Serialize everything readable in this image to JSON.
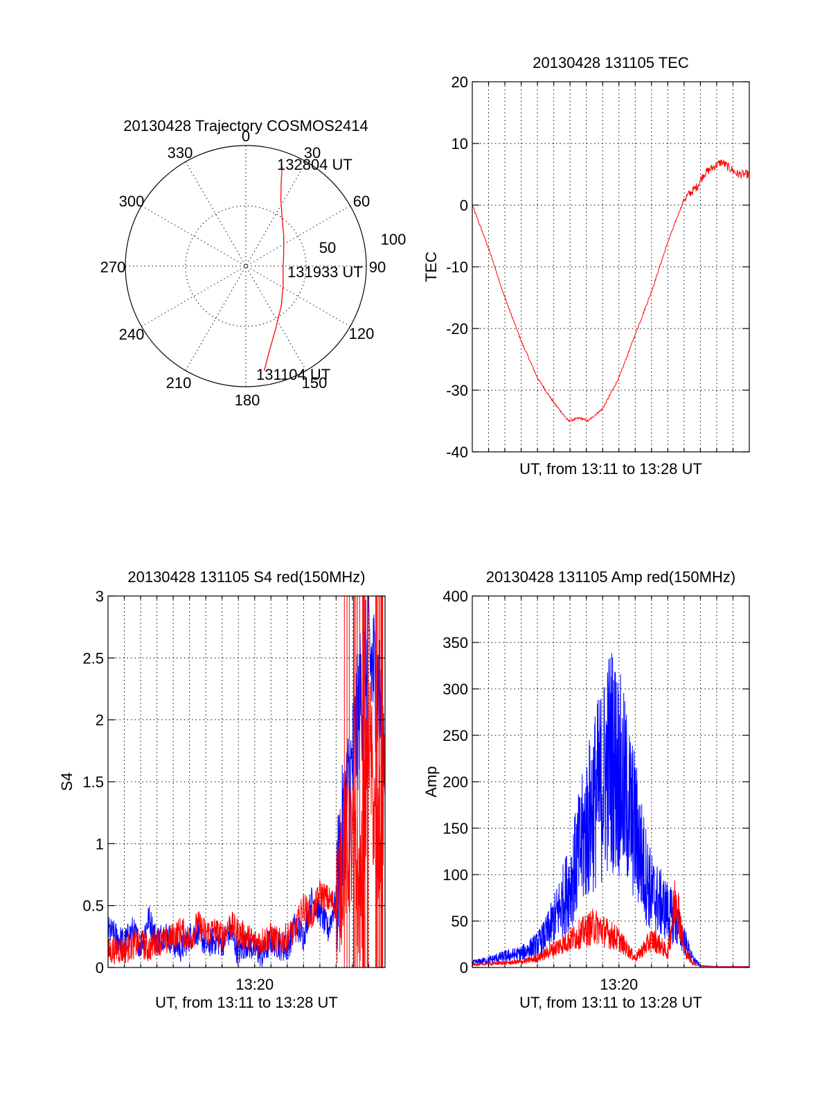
{
  "chart_data": [
    {
      "type": "polar-line",
      "title": "20130428 Trajectory COSMOS2414",
      "angle_labels": [
        "0",
        "30",
        "60",
        "90",
        "120",
        "150",
        "180",
        "210",
        "240",
        "270",
        "300",
        "330"
      ],
      "radial_labels": [
        "50",
        "100"
      ],
      "annotations": [
        "132804 UT",
        "131933 UT",
        "131104 UT"
      ],
      "series": [
        {
          "color": "#ff0000",
          "points": [
            {
              "azimuth": 20,
              "zenith": 88,
              "time": "132804"
            },
            {
              "azimuth": 23,
              "zenith": 75
            },
            {
              "azimuth": 28,
              "zenith": 62
            },
            {
              "azimuth": 37,
              "zenith": 50
            },
            {
              "azimuth": 52,
              "zenith": 40
            },
            {
              "azimuth": 72,
              "zenith": 33
            },
            {
              "azimuth": 94,
              "zenith": 31,
              "time": "131933"
            },
            {
              "azimuth": 118,
              "zenith": 35
            },
            {
              "azimuth": 138,
              "zenith": 44
            },
            {
              "azimuth": 154,
              "zenith": 57
            },
            {
              "azimuth": 164,
              "zenith": 72
            },
            {
              "azimuth": 170,
              "zenith": 88,
              "time": "131104"
            }
          ]
        }
      ]
    },
    {
      "type": "line",
      "title": "20130428 131105 TEC",
      "ylabel": "TEC",
      "xlabel": "UT, from 13:11 to 13:28 UT",
      "ylim": [
        -40,
        20
      ],
      "xlim": [
        0,
        17
      ],
      "yticks": [
        "20",
        "10",
        "0",
        "-10",
        "-20",
        "-30",
        "-40"
      ],
      "series": [
        {
          "color": "#ff0000",
          "x": [
            0,
            1,
            2,
            3,
            4,
            5,
            5.9,
            6.6,
            7.1,
            8,
            9,
            10,
            11,
            12,
            13,
            13.8,
            14.2,
            14.7,
            15.3,
            15.8,
            16.3,
            17
          ],
          "y": [
            0,
            -7,
            -15,
            -22,
            -28,
            -32,
            -35,
            -34.5,
            -35,
            -33,
            -28,
            -21,
            -14,
            -6,
            1,
            3,
            5,
            6,
            7,
            6,
            5,
            5
          ]
        }
      ]
    },
    {
      "type": "line",
      "title": "20130428 131105 S4 red(150MHz)",
      "ylabel": "S4",
      "xlabel": "UT, from 13:11 to 13:28 UT",
      "ylim": [
        0,
        3
      ],
      "xlim": [
        0,
        17
      ],
      "yticks": [
        "0",
        "0.5",
        "1",
        "1.5",
        "2",
        "2.5",
        "3"
      ],
      "xticks": [
        {
          "x": 9,
          "label": "13:20"
        }
      ],
      "series": [
        {
          "color": "#0000ff",
          "x": [
            0,
            0.5,
            1,
            1.5,
            2,
            2.5,
            3,
            3.5,
            4,
            4.5,
            5,
            5.5,
            6,
            6.5,
            7,
            7.5,
            8,
            8.5,
            9,
            9.5,
            10,
            10.5,
            11,
            11.5,
            12,
            12.5,
            13,
            13.5,
            14,
            14.5,
            15,
            15.5,
            16,
            16.5,
            17
          ],
          "y": [
            0.3,
            0.25,
            0.2,
            0.3,
            0.18,
            0.4,
            0.22,
            0.28,
            0.2,
            0.15,
            0.25,
            0.3,
            0.18,
            0.22,
            0.2,
            0.3,
            0.12,
            0.2,
            0.15,
            0.1,
            0.22,
            0.18,
            0.15,
            0.35,
            0.25,
            0.55,
            0.45,
            0.3,
            0.55,
            1.2,
            1.6,
            2.2,
            2.5,
            2.3,
            1.8
          ]
        },
        {
          "color": "#ff0000",
          "x": [
            0,
            0.5,
            1,
            1.5,
            2,
            2.5,
            3,
            3.5,
            4,
            4.5,
            5,
            5.5,
            6,
            6.5,
            7,
            7.5,
            8,
            8.5,
            9,
            9.5,
            10,
            10.5,
            11,
            11.5,
            12,
            12.5,
            13,
            13.5,
            14,
            14.5,
            15,
            15.5,
            16,
            16.5,
            17
          ],
          "y": [
            0.12,
            0.15,
            0.14,
            0.18,
            0.2,
            0.15,
            0.22,
            0.2,
            0.25,
            0.3,
            0.22,
            0.35,
            0.28,
            0.3,
            0.25,
            0.35,
            0.28,
            0.25,
            0.2,
            0.22,
            0.25,
            0.2,
            0.25,
            0.3,
            0.5,
            0.4,
            0.6,
            0.55,
            0.5,
            0.9,
            1.0,
            0.5,
            2.0,
            0.8,
            1.5
          ]
        }
      ]
    },
    {
      "type": "line",
      "title": "20130428 131105 Amp red(150MHz)",
      "ylabel": "Amp",
      "xlabel": "UT, from 13:11 to 13:28 UT",
      "ylim": [
        0,
        400
      ],
      "xlim": [
        0,
        17
      ],
      "yticks": [
        "0",
        "50",
        "100",
        "150",
        "200",
        "250",
        "300",
        "350",
        "400"
      ],
      "xticks": [
        {
          "x": 9,
          "label": "13:20"
        }
      ],
      "series": [
        {
          "color": "#0000ff",
          "x": [
            0,
            1,
            2,
            3,
            3.5,
            4,
            4.5,
            5,
            5.5,
            6,
            6.5,
            7,
            7.5,
            8,
            8.5,
            9,
            9.5,
            10,
            10.5,
            11,
            11.5,
            12,
            12.5,
            13,
            13.5,
            14,
            15,
            16,
            17
          ],
          "y": [
            5,
            8,
            12,
            15,
            20,
            25,
            35,
            50,
            70,
            90,
            120,
            150,
            180,
            200,
            230,
            210,
            180,
            150,
            110,
            80,
            70,
            60,
            50,
            30,
            10,
            2,
            1,
            1,
            1
          ]
        },
        {
          "color": "#ff0000",
          "x": [
            0,
            1,
            2,
            3,
            3.5,
            4,
            4.5,
            5,
            5.5,
            6,
            6.5,
            7,
            7.5,
            8,
            8.5,
            9,
            9.5,
            10,
            10.5,
            11,
            11.5,
            12,
            12.5,
            13,
            13.5,
            14,
            15,
            16,
            17
          ],
          "y": [
            3,
            4,
            5,
            6,
            8,
            10,
            15,
            20,
            25,
            30,
            35,
            40,
            45,
            40,
            35,
            30,
            20,
            10,
            20,
            30,
            25,
            15,
            80,
            20,
            5,
            1,
            1,
            1,
            1
          ]
        }
      ]
    }
  ]
}
